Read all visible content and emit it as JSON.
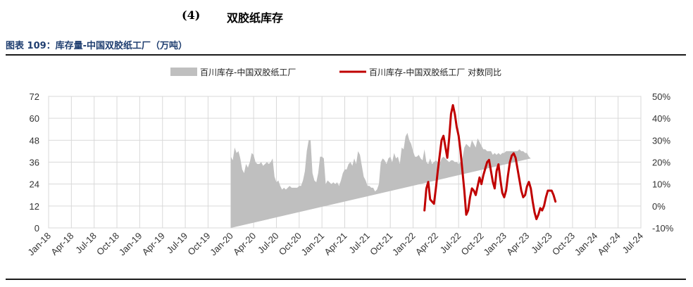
{
  "section": {
    "number": "(4)",
    "title": "双胶纸库存"
  },
  "figure": {
    "title": "图表 109：库存量-中国双胶纸工厂（万吨）"
  },
  "chart_data": {
    "type": "area+line",
    "title": "图表 109：库存量-中国双胶纸工厂（万吨）",
    "legend_position": "top",
    "grid": true,
    "x_ticks": [
      "Jan-18",
      "Apr-18",
      "Jul-18",
      "Oct-18",
      "Jan-19",
      "Apr-19",
      "Jul-19",
      "Oct-19",
      "Jan-20",
      "Apr-20",
      "Jul-20",
      "Oct-20",
      "Jan-21",
      "Apr-21",
      "Jul-21",
      "Oct-21",
      "Jan-22",
      "Apr-22",
      "Jul-22",
      "Oct-22",
      "Jan-23",
      "Apr-23",
      "Jul-23",
      "Oct-23",
      "Jan-24",
      "Apr-24",
      "Jul-24"
    ],
    "y_left": {
      "ticks": [
        "0",
        "12",
        "24",
        "36",
        "48",
        "60",
        "72"
      ],
      "range": [
        0,
        72
      ]
    },
    "y_right": {
      "ticks": [
        "-10%",
        "0%",
        "10%",
        "20%",
        "30%",
        "40%",
        "50%"
      ],
      "range": [
        -10,
        50
      ]
    },
    "series": [
      {
        "name": "百川库存-中国双胶纸工厂",
        "kind": "area",
        "axis": "left",
        "color": "#bfbfbf",
        "x_month_index": [
          24.0,
          24.25,
          24.5,
          24.75,
          25.0,
          25.25,
          25.5,
          25.75,
          26.0,
          26.25,
          26.5,
          26.75,
          27.0,
          27.25,
          27.5,
          27.75,
          28.0,
          28.25,
          28.5,
          28.75,
          29.0,
          29.25,
          29.5,
          29.75,
          30.0,
          30.25,
          30.5,
          30.75,
          31.0,
          31.25,
          31.5,
          31.75,
          32.0,
          32.25,
          32.5,
          32.75,
          33.0,
          33.25,
          33.5,
          33.75,
          34.0,
          34.25,
          34.5,
          34.75,
          35.0,
          35.25,
          35.5,
          35.75,
          36.0,
          36.25,
          36.5,
          36.75,
          37.0,
          37.25,
          37.5,
          37.75,
          38.0,
          38.25,
          38.5,
          38.75,
          39.0,
          39.25,
          39.5,
          39.75,
          40.0,
          40.25,
          40.5,
          40.75,
          41.0,
          41.25,
          41.5,
          41.75,
          42.0,
          42.25,
          42.5,
          42.75,
          43.0,
          43.25,
          43.5,
          43.75,
          44.0,
          44.25,
          44.5,
          44.75,
          45.0,
          45.25,
          45.5,
          45.75,
          46.0,
          46.25,
          46.5,
          46.75,
          47.0,
          47.25,
          47.5,
          47.75,
          48.0,
          48.25,
          48.5,
          48.75,
          49.0,
          49.25,
          49.5,
          49.75,
          50.0,
          50.25,
          50.5,
          50.75,
          51.0,
          51.25,
          51.5,
          51.75,
          52.0,
          52.25,
          52.5,
          52.75,
          53.0,
          53.25,
          53.5,
          53.75,
          54.0,
          54.25,
          54.5,
          54.75,
          55.0,
          55.25,
          55.5,
          55.75,
          56.0,
          56.25,
          56.5,
          56.75,
          57.0,
          57.25,
          57.5,
          57.75,
          58.0,
          58.25,
          58.5,
          58.75,
          59.0,
          59.25,
          59.5,
          59.75,
          60.0,
          60.25,
          60.5,
          60.75,
          61.0,
          61.25,
          61.5,
          61.75,
          62.0,
          62.25,
          62.5,
          62.75,
          63.0,
          63.25,
          63.5,
          63.75,
          64.0,
          64.25,
          64.5,
          64.75,
          65.0,
          65.25,
          65.5,
          65.75,
          66.0,
          66.25,
          66.5,
          66.75
        ],
        "values": [
          39,
          37,
          44,
          41,
          42,
          38,
          32,
          30,
          35,
          33,
          36,
          41,
          40,
          36,
          35,
          35,
          36,
          34,
          35,
          36,
          35,
          36,
          38,
          28,
          25,
          26,
          23,
          21,
          22,
          21,
          22,
          23,
          22,
          22,
          22,
          22,
          23,
          23,
          26,
          31,
          42,
          48,
          48,
          30,
          26,
          25,
          30,
          39,
          39,
          38,
          24,
          26,
          25,
          24,
          25,
          24,
          25,
          23,
          26,
          30,
          32,
          32,
          35,
          36,
          34,
          38,
          35,
          42,
          40,
          34,
          28,
          26,
          23,
          23,
          22,
          22,
          20,
          21,
          24,
          36,
          38,
          37,
          35,
          38,
          39,
          36,
          41,
          38,
          39,
          35,
          44,
          43,
          50,
          52,
          48,
          46,
          42,
          39,
          39,
          40,
          38,
          37,
          43,
          36,
          35,
          38,
          35,
          36,
          37,
          36,
          35,
          38,
          39,
          38,
          37,
          36,
          37,
          37,
          36,
          36,
          35,
          36,
          38,
          44,
          46,
          45,
          44,
          48,
          46,
          44,
          49,
          47,
          45,
          43,
          43,
          42,
          42,
          42,
          40,
          41,
          40,
          41,
          40,
          41,
          41,
          42,
          42,
          42,
          42,
          42,
          42,
          42,
          43,
          42,
          42,
          41,
          41,
          39,
          38
        ]
      },
      {
        "name": "百川库存-中国双胶纸工厂 对数同比",
        "kind": "line",
        "axis": "right",
        "color": "#c00000",
        "x_month_index": [
          49.5,
          49.75,
          50.0,
          50.25,
          50.5,
          50.75,
          51.0,
          51.25,
          51.5,
          51.75,
          52.0,
          52.25,
          52.5,
          52.75,
          53.0,
          53.25,
          53.5,
          53.75,
          54.0,
          54.25,
          54.5,
          54.75,
          55.0,
          55.25,
          55.5,
          55.75,
          56.0,
          56.25,
          56.5,
          56.75,
          57.0,
          57.25,
          57.5,
          57.75,
          58.0,
          58.25,
          58.5,
          58.75,
          59.0,
          59.25,
          59.5,
          59.75,
          60.0,
          60.25,
          60.5,
          60.75,
          61.0,
          61.25,
          61.5,
          61.75,
          62.0,
          62.25,
          62.5,
          62.75,
          63.0,
          63.25,
          63.5,
          63.75,
          64.0,
          64.25,
          64.5,
          64.75,
          65.0,
          65.25,
          65.5,
          65.75,
          66.0,
          66.25,
          66.5,
          66.75
        ],
        "values": [
          -2,
          8,
          11,
          3,
          2,
          1,
          8,
          16,
          23,
          30,
          32,
          27,
          22,
          31,
          42,
          46,
          42,
          36,
          32,
          25,
          16,
          7,
          -4,
          -2,
          4,
          8,
          7,
          5,
          9,
          13,
          10,
          14,
          17,
          20,
          21,
          16,
          11,
          8,
          16,
          19,
          12,
          6,
          4,
          7,
          14,
          20,
          23,
          24,
          22,
          17,
          12,
          7,
          4,
          5,
          9,
          11,
          8,
          2,
          -3,
          -6,
          -4,
          -1,
          -2,
          0,
          4,
          7,
          7,
          7,
          5,
          2
        ]
      }
    ]
  }
}
